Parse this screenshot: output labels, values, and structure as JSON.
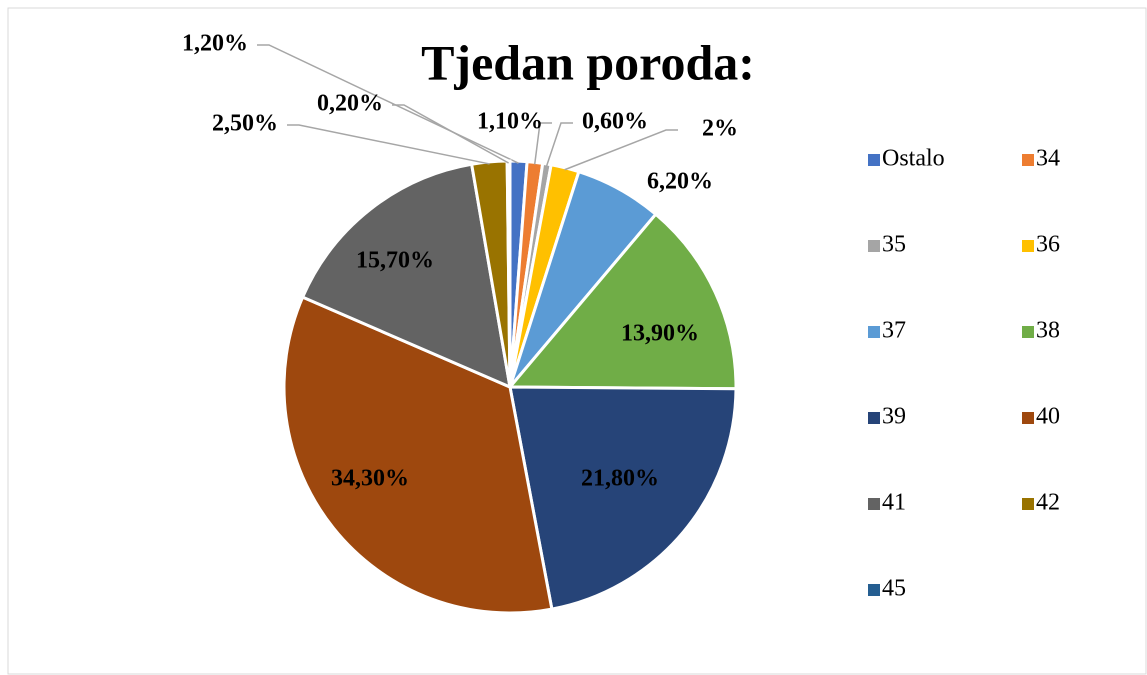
{
  "chart_data": {
    "type": "pie",
    "title": "Tjedan poroda:",
    "categories": [
      "Ostalo",
      "34",
      "35",
      "36",
      "37",
      "38",
      "39",
      "40",
      "41",
      "42",
      "45"
    ],
    "values": [
      1.2,
      1.1,
      0.6,
      2,
      6.2,
      13.9,
      21.8,
      34.3,
      15.7,
      2.5,
      0.2
    ],
    "value_labels": [
      "1,20%",
      "1,10%",
      "0,60%",
      "2%",
      "6,20%",
      "13,90%",
      "21,80%",
      "34,30%",
      "15,70%",
      "2,50%",
      "0,20%"
    ],
    "colors": [
      "#4472c4",
      "#ed7d31",
      "#a5a5a5",
      "#ffc000",
      "#5b9bd5",
      "#70ad47",
      "#264478",
      "#9e480e",
      "#636363",
      "#997300",
      "#255e91"
    ],
    "legend": "right"
  }
}
